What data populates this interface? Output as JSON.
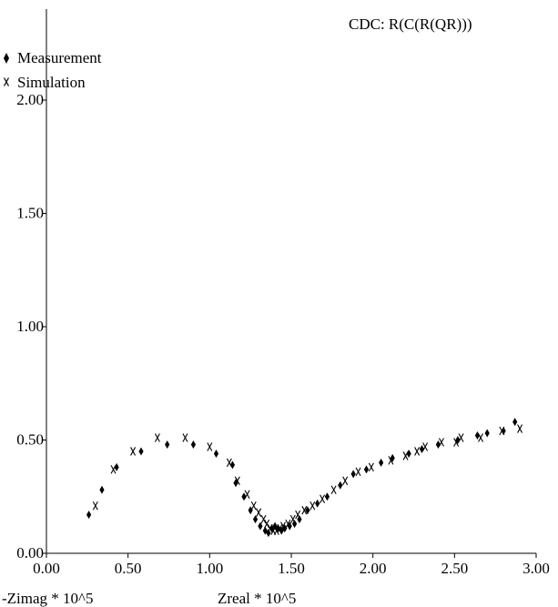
{
  "chart_data": {
    "type": "scatter",
    "title": "CDC: R(C(R(QR)))",
    "xlabel": "Zreal * 10^5",
    "ylabel": "-Zimag * 10^5",
    "xlim": [
      0,
      3
    ],
    "ylim": [
      0,
      2.3
    ],
    "x_ticks": [
      "0.00",
      "0.50",
      "1.00",
      "1.50",
      "2.00",
      "2.50",
      "3.00"
    ],
    "y_ticks": [
      "0.00",
      "0.50",
      "1.00",
      "1.50",
      "2.00"
    ],
    "grid": false,
    "legend_position": "top-left",
    "series": [
      {
        "name": "Measurement",
        "marker": "diamond",
        "x": [
          0.26,
          0.34,
          0.43,
          0.58,
          0.74,
          0.9,
          1.04,
          1.14,
          1.16,
          1.21,
          1.25,
          1.28,
          1.31,
          1.34,
          1.36,
          1.38,
          1.4,
          1.42,
          1.44,
          1.46,
          1.49,
          1.52,
          1.55,
          1.6,
          1.66,
          1.72,
          1.8,
          1.88,
          1.96,
          2.05,
          2.12,
          2.22,
          2.3,
          2.4,
          2.52,
          2.64,
          2.7,
          2.8,
          2.87
        ],
        "y": [
          0.17,
          0.28,
          0.38,
          0.45,
          0.48,
          0.48,
          0.44,
          0.39,
          0.31,
          0.25,
          0.19,
          0.15,
          0.12,
          0.1,
          0.09,
          0.11,
          0.12,
          0.11,
          0.1,
          0.11,
          0.12,
          0.13,
          0.15,
          0.19,
          0.22,
          0.25,
          0.3,
          0.35,
          0.37,
          0.4,
          0.42,
          0.44,
          0.46,
          0.48,
          0.5,
          0.52,
          0.53,
          0.54,
          0.58
        ]
      },
      {
        "name": "Simulation",
        "marker": "x",
        "x": [
          0.3,
          0.41,
          0.53,
          0.68,
          0.85,
          1.0,
          1.12,
          1.17,
          1.23,
          1.27,
          1.3,
          1.33,
          1.35,
          1.37,
          1.39,
          1.41,
          1.43,
          1.45,
          1.48,
          1.51,
          1.54,
          1.58,
          1.63,
          1.69,
          1.76,
          1.83,
          1.91,
          1.99,
          2.11,
          2.2,
          2.27,
          2.32,
          2.42,
          2.51,
          2.54,
          2.66,
          2.79,
          2.9
        ],
        "y": [
          0.21,
          0.37,
          0.45,
          0.51,
          0.51,
          0.47,
          0.4,
          0.32,
          0.26,
          0.21,
          0.18,
          0.15,
          0.13,
          0.11,
          0.1,
          0.1,
          0.11,
          0.12,
          0.13,
          0.15,
          0.17,
          0.19,
          0.21,
          0.24,
          0.28,
          0.32,
          0.36,
          0.38,
          0.41,
          0.43,
          0.45,
          0.47,
          0.49,
          0.49,
          0.51,
          0.51,
          0.54,
          0.55
        ]
      }
    ]
  }
}
